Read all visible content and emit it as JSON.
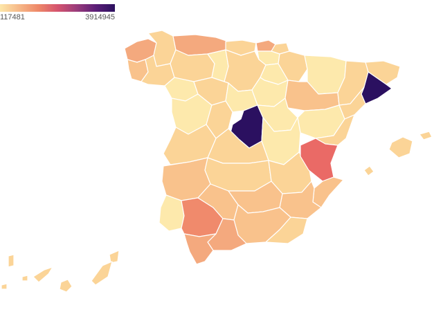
{
  "legend": {
    "min_label": "117481",
    "max_label": "3914945",
    "colors": [
      "#fde7a9",
      "#f6b888",
      "#ee8868",
      "#d5546e",
      "#9a3c7b",
      "#5b1e77",
      "#2c115f"
    ]
  },
  "map": {
    "fill_default": "#fbd497",
    "fill_light": "#fde9ac",
    "fill_mid": "#f9c28c",
    "fill_orange": "#f4a97e",
    "fill_salmon": "#f08a6c",
    "fill_red": "#ea6a66",
    "fill_dark": "#2b1060",
    "border": "#ffffff",
    "background": "#ffffff"
  }
}
